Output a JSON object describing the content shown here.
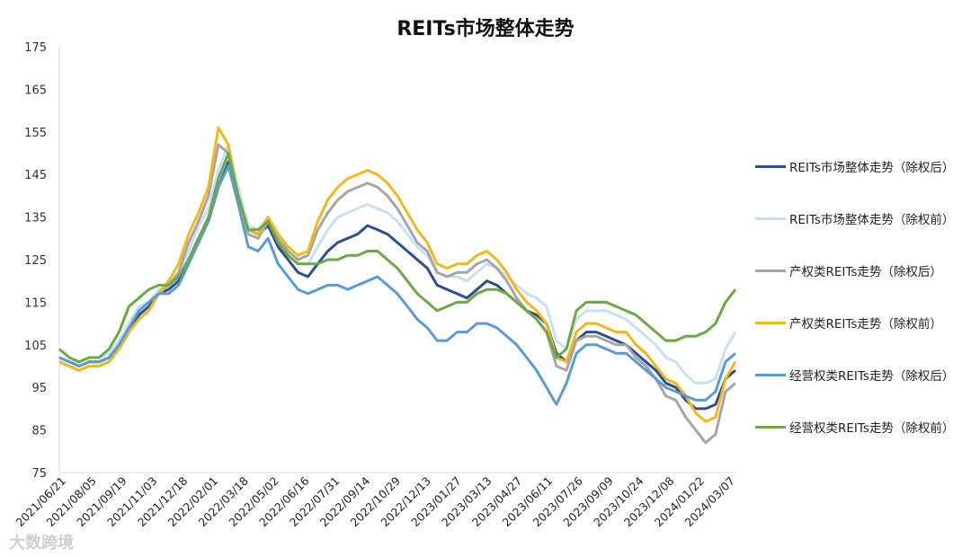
{
  "chart_data": {
    "type": "line",
    "title": "REITs市场整体走势",
    "ylim": [
      75,
      175
    ],
    "yticks": [
      75,
      85,
      95,
      105,
      115,
      125,
      135,
      145,
      155,
      165,
      175
    ],
    "xticks": [
      "2021/06/21",
      "2021/08/05",
      "2021/09/19",
      "2021/11/03",
      "2021/12/18",
      "2022/02/01",
      "2022/03/18",
      "2022/05/02",
      "2022/06/16",
      "2022/07/31",
      "2022/09/14",
      "2022/10/29",
      "2022/12/13",
      "2023/01/27",
      "2023/03/13",
      "2023/04/27",
      "2023/06/11",
      "2023/07/26",
      "2023/09/09",
      "2023/10/24",
      "2023/12/08",
      "2024/01/22",
      "2024/03/07"
    ],
    "legend_position": "right",
    "grid": false,
    "x_index": [
      0,
      1,
      2,
      3,
      4,
      5,
      6,
      7,
      8,
      9,
      10,
      11,
      12,
      13,
      14,
      15,
      16,
      17,
      18,
      19,
      20,
      21,
      22,
      23,
      24,
      25,
      26,
      27,
      28,
      29,
      30,
      31,
      32,
      33,
      34,
      35,
      36,
      37,
      38,
      39,
      40,
      41,
      42,
      43,
      44,
      45,
      46,
      47,
      48,
      49,
      50,
      51,
      52,
      53,
      54,
      55,
      56,
      57,
      58,
      59,
      60,
      61,
      62,
      63,
      64,
      65,
      66,
      67,
      68
    ],
    "series": [
      {
        "name": "REITs市场整体走势（除权后）",
        "color": "#2f4e8c",
        "values": [
          102,
          101,
          100,
          101,
          101,
          102,
          104,
          108,
          112,
          114,
          117,
          118,
          120,
          125,
          130,
          134,
          142,
          148,
          140,
          132,
          131,
          133,
          128,
          125,
          122,
          121,
          124,
          127,
          129,
          130,
          131,
          133,
          132,
          131,
          129,
          127,
          125,
          123,
          119,
          118,
          117,
          116,
          118,
          120,
          119,
          117,
          115,
          113,
          112,
          110,
          103,
          101,
          106,
          108,
          108,
          107,
          106,
          105,
          103,
          101,
          99,
          96,
          95,
          92,
          90,
          90,
          91,
          97,
          99
        ]
      },
      {
        "name": "REITs市场整体走势（除权前）",
        "color": "#c8e0f4",
        "values": [
          102,
          101,
          101,
          102,
          102,
          103,
          106,
          110,
          114,
          115,
          118,
          119,
          121,
          127,
          133,
          137,
          146,
          152,
          142,
          133,
          132,
          135,
          130,
          126,
          124,
          124,
          128,
          132,
          135,
          136,
          137,
          138,
          137,
          136,
          134,
          131,
          128,
          126,
          122,
          121,
          121,
          120,
          122,
          124,
          123,
          121,
          119,
          117,
          116,
          114,
          106,
          104,
          111,
          113,
          113,
          113,
          112,
          111,
          109,
          107,
          105,
          102,
          101,
          98,
          96,
          96,
          97,
          104,
          108
        ]
      },
      {
        "name": "产权类REITs走势（除权后）",
        "color": "#a6a6a6",
        "values": [
          101,
          100,
          99,
          100,
          100,
          101,
          104,
          108,
          111,
          113,
          117,
          119,
          122,
          129,
          134,
          140,
          152,
          150,
          138,
          131,
          130,
          134,
          130,
          127,
          125,
          126,
          132,
          136,
          139,
          141,
          142,
          143,
          142,
          140,
          137,
          133,
          129,
          127,
          122,
          121,
          122,
          122,
          124,
          125,
          123,
          120,
          116,
          113,
          111,
          108,
          100,
          99,
          106,
          107,
          107,
          106,
          105,
          105,
          102,
          100,
          97,
          93,
          92,
          88,
          85,
          82,
          84,
          94,
          96
        ]
      },
      {
        "name": "产权类REITs走势（除权前）",
        "color": "#f2b81b",
        "values": [
          101,
          100,
          99,
          100,
          100,
          101,
          104,
          108,
          111,
          113,
          117,
          120,
          124,
          131,
          136,
          142,
          156,
          152,
          139,
          132,
          131,
          135,
          131,
          128,
          126,
          127,
          134,
          139,
          142,
          144,
          145,
          146,
          145,
          143,
          140,
          136,
          132,
          129,
          124,
          123,
          124,
          124,
          126,
          127,
          125,
          122,
          118,
          115,
          113,
          110,
          102,
          101,
          108,
          110,
          110,
          109,
          108,
          108,
          105,
          103,
          100,
          97,
          96,
          93,
          89,
          87,
          88,
          97,
          101
        ]
      },
      {
        "name": "经营权类REITs走势（除权后）",
        "color": "#5b9bd5",
        "values": [
          102,
          101,
          100,
          101,
          101,
          102,
          105,
          109,
          113,
          115,
          117,
          117,
          119,
          124,
          129,
          134,
          142,
          147,
          138,
          128,
          127,
          130,
          124,
          121,
          118,
          117,
          118,
          119,
          119,
          118,
          119,
          120,
          121,
          119,
          117,
          114,
          111,
          109,
          106,
          106,
          108,
          108,
          110,
          110,
          109,
          107,
          105,
          102,
          99,
          95,
          91,
          96,
          103,
          105,
          105,
          104,
          103,
          103,
          101,
          99,
          97,
          95,
          94,
          93,
          92,
          92,
          94,
          101,
          103
        ]
      },
      {
        "name": "经营权类REITs走势（除权前）",
        "color": "#6ca844",
        "values": [
          104,
          102,
          101,
          102,
          102,
          104,
          108,
          114,
          116,
          118,
          119,
          119,
          121,
          125,
          130,
          135,
          144,
          150,
          140,
          132,
          132,
          134,
          129,
          126,
          124,
          124,
          124,
          125,
          125,
          126,
          126,
          127,
          127,
          125,
          123,
          120,
          117,
          115,
          113,
          114,
          115,
          115,
          117,
          118,
          118,
          117,
          115,
          113,
          111,
          108,
          102,
          104,
          113,
          115,
          115,
          115,
          114,
          113,
          112,
          110,
          108,
          106,
          106,
          107,
          107,
          108,
          110,
          115,
          118
        ]
      }
    ]
  },
  "watermark": "大数跨境"
}
